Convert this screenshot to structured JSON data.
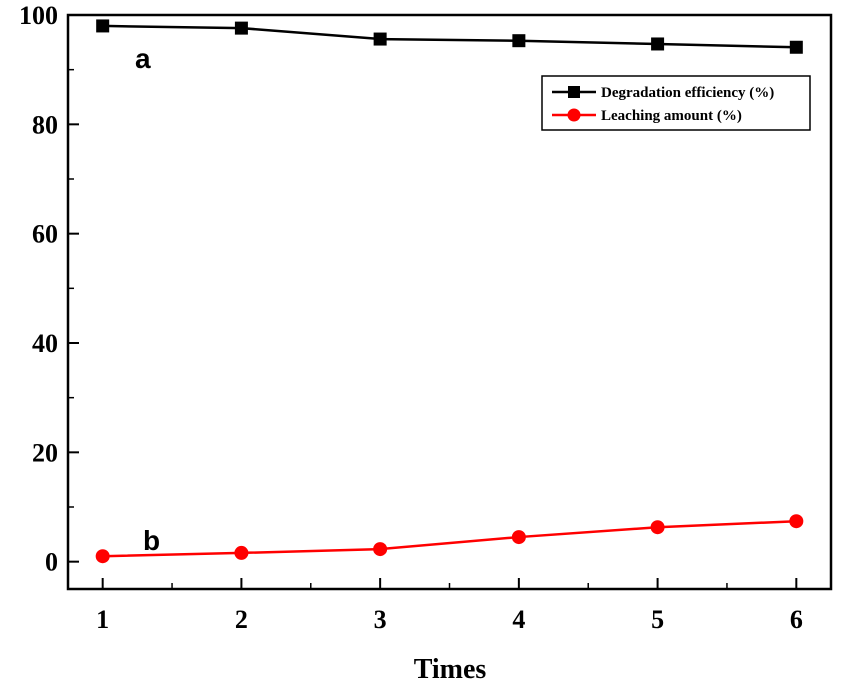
{
  "chart_data": {
    "type": "line",
    "title": "",
    "xlabel": "Times",
    "ylabel": "",
    "x": [
      1,
      2,
      3,
      4,
      5,
      6
    ],
    "xlim": [
      0.75,
      6.25
    ],
    "ylim": [
      -5,
      100
    ],
    "x_ticks": [
      "1",
      "2",
      "3",
      "4",
      "5",
      "6"
    ],
    "y_ticks": [
      "0",
      "20",
      "40",
      "60",
      "80",
      "100"
    ],
    "grid": false,
    "legend_position": "top-right",
    "series": [
      {
        "name": "Degradation efficiency (%)",
        "values": [
          98,
          97.6,
          95.6,
          95.3,
          94.7,
          94.1
        ],
        "color": "#000000",
        "marker": "square",
        "label": "a"
      },
      {
        "name": "Leaching amount (%)",
        "values": [
          1.0,
          1.6,
          2.3,
          4.5,
          6.3,
          7.4
        ],
        "color": "#ff0000",
        "marker": "circle",
        "label": "b"
      }
    ]
  }
}
